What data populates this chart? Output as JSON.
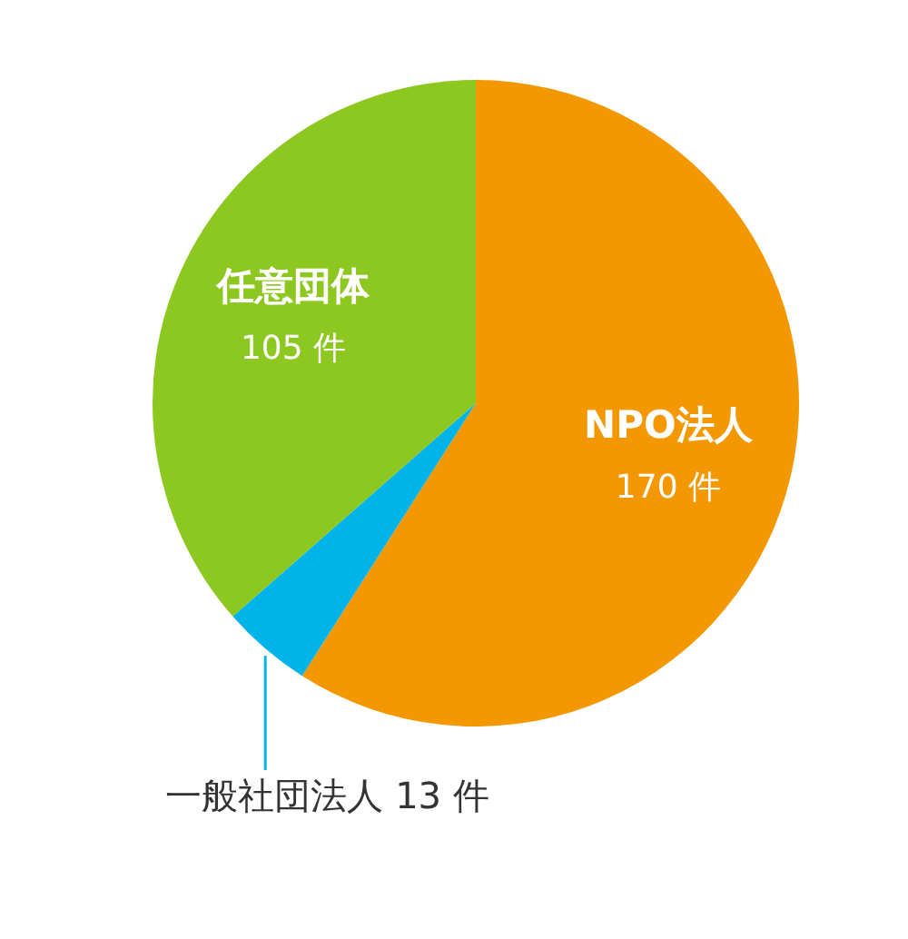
{
  "chart_data": {
    "type": "pie",
    "categories": [
      "NPO法人",
      "一般社団法人",
      "任意団体"
    ],
    "values": [
      170,
      13,
      105
    ],
    "value_labels": [
      "170 件",
      "13 件",
      "105 件"
    ],
    "colors": [
      "#f39800",
      "#00b3e8",
      "#8cc820"
    ]
  }
}
